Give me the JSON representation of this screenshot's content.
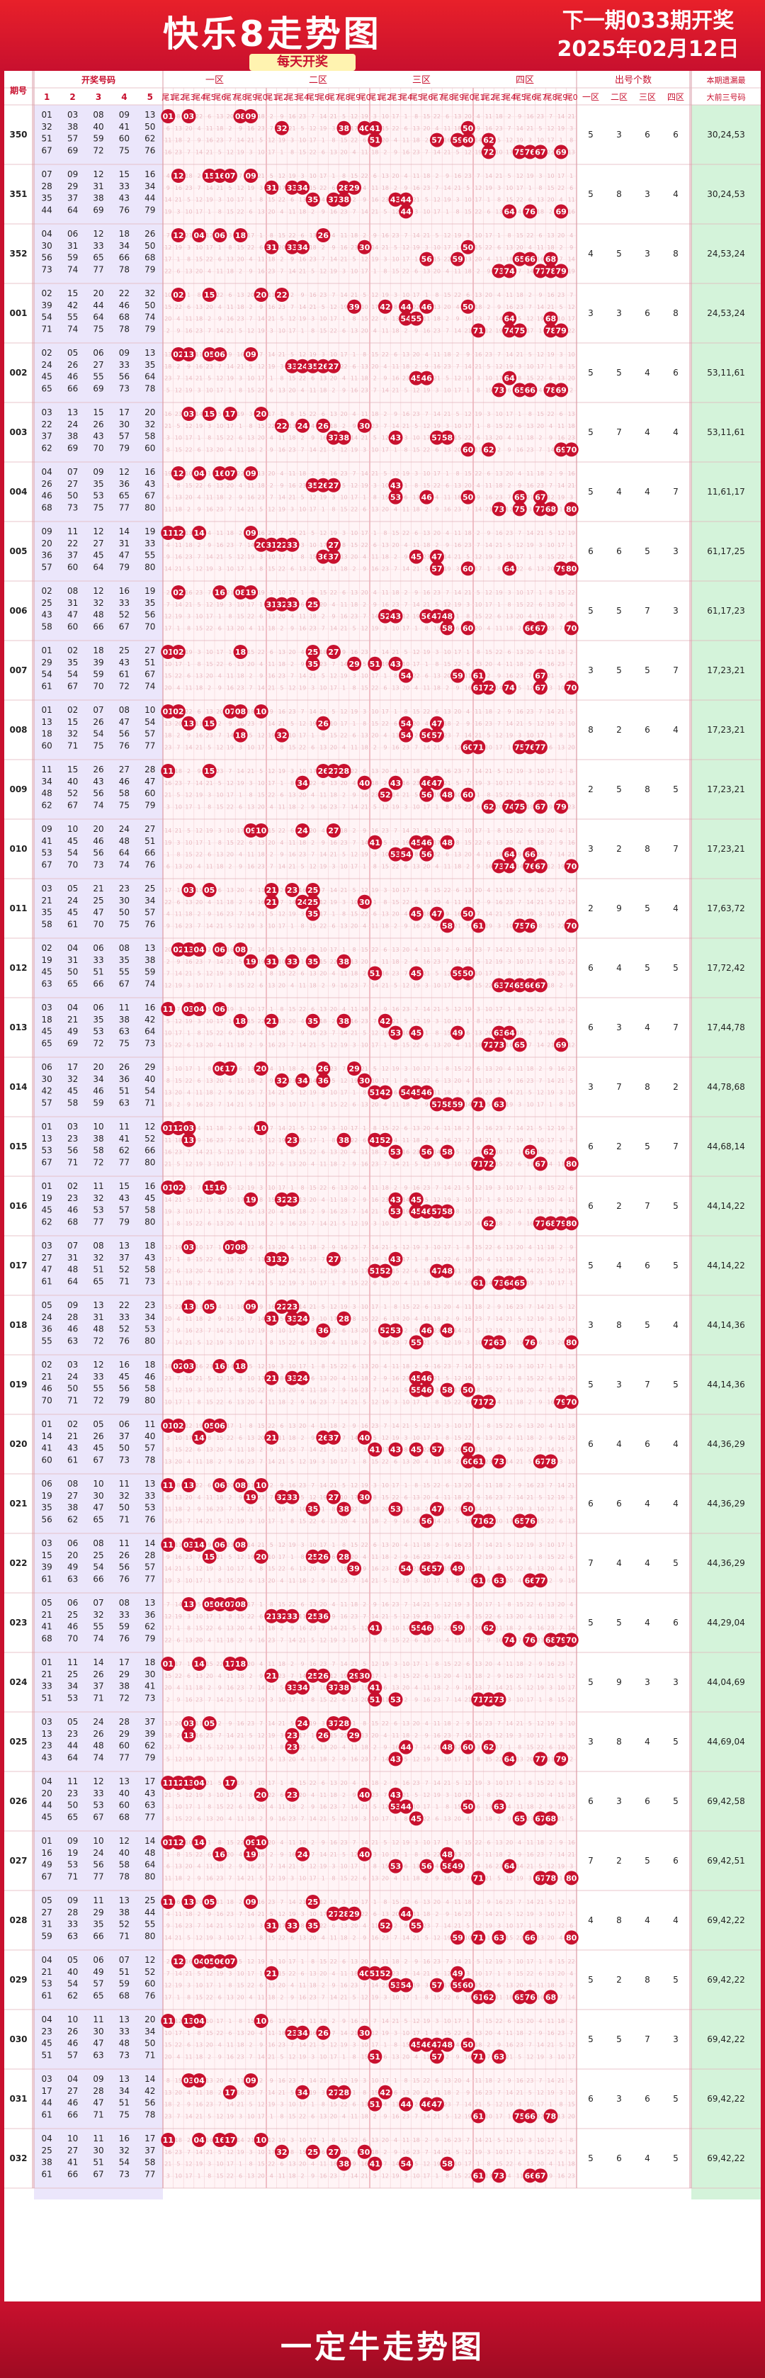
{
  "header": {
    "title": "快乐8走势图",
    "subtitle": "每天开奖",
    "next_draw": "下一期033期开奖",
    "next_date": "2025年02月12日"
  },
  "footer": {
    "text": "一定牛走势图"
  },
  "columns": {
    "period": "期号",
    "numbers": "开奖号码",
    "num_sub": [
      "1",
      "2",
      "3",
      "4",
      "5"
    ],
    "zones": [
      "一区",
      "二区",
      "三区",
      "四区"
    ],
    "tails": [
      "尾1",
      "尾2",
      "尾3",
      "尾4",
      "尾5",
      "尾6",
      "尾7",
      "尾8",
      "尾9",
      "尾0"
    ],
    "count": "出号个数",
    "count_sub": [
      "一区",
      "二区",
      "三区",
      "四区"
    ],
    "miss_top": "本期遗漏最",
    "miss_bottom": "大前三号码"
  },
  "colors": {
    "red": "#c8102e",
    "ball": "#c8102e",
    "lavender": "#ebe6fb",
    "mint": "#d4f3da",
    "pink": "#fff4f6"
  },
  "chart_data": {
    "type": "table",
    "rows": [
      {
        "period": "350",
        "nums": [
          1,
          3,
          8,
          9,
          13,
          32,
          38,
          40,
          41,
          50,
          51,
          57,
          59,
          60,
          62,
          67,
          69,
          72,
          75,
          76
        ],
        "miss": "30,24,53"
      },
      {
        "period": "351",
        "nums": [
          7,
          9,
          12,
          15,
          16,
          28,
          29,
          31,
          33,
          34,
          35,
          37,
          38,
          43,
          44,
          44,
          64,
          69,
          76,
          79
        ],
        "miss": "30,24,53"
      },
      {
        "period": "352",
        "nums": [
          4,
          6,
          12,
          18,
          26,
          30,
          31,
          33,
          34,
          50,
          56,
          59,
          65,
          66,
          68,
          73,
          74,
          77,
          78,
          79
        ],
        "miss": "24,53,24"
      },
      {
        "period": "001",
        "nums": [
          2,
          15,
          20,
          22,
          32,
          39,
          42,
          44,
          46,
          50,
          54,
          55,
          64,
          68,
          74,
          71,
          74,
          75,
          78,
          79
        ],
        "miss": "24,53,24"
      },
      {
        "period": "002",
        "nums": [
          2,
          5,
          6,
          9,
          13,
          24,
          26,
          27,
          33,
          35,
          45,
          46,
          55,
          56,
          64,
          65,
          66,
          69,
          73,
          78
        ],
        "miss": "53,11,61"
      },
      {
        "period": "003",
        "nums": [
          3,
          13,
          15,
          17,
          20,
          22,
          24,
          26,
          30,
          32,
          37,
          38,
          43,
          57,
          58,
          62,
          69,
          70,
          79,
          60
        ],
        "miss": "53,11,61"
      },
      {
        "period": "004",
        "nums": [
          4,
          7,
          9,
          12,
          16,
          26,
          27,
          35,
          36,
          43,
          46,
          50,
          53,
          65,
          67,
          68,
          73,
          75,
          77,
          80
        ],
        "miss": "11,61,17"
      },
      {
        "period": "005",
        "nums": [
          9,
          11,
          12,
          14,
          19,
          20,
          22,
          27,
          31,
          33,
          36,
          37,
          45,
          47,
          55,
          57,
          60,
          64,
          79,
          80
        ],
        "miss": "61,17,25"
      },
      {
        "period": "006",
        "nums": [
          2,
          8,
          12,
          16,
          19,
          25,
          31,
          32,
          33,
          35,
          43,
          47,
          48,
          52,
          56,
          58,
          60,
          66,
          67,
          70
        ],
        "miss": "61,17,23"
      },
      {
        "period": "007",
        "nums": [
          1,
          2,
          18,
          25,
          27,
          29,
          35,
          39,
          43,
          51,
          54,
          54,
          59,
          61,
          67,
          61,
          67,
          70,
          72,
          74
        ],
        "miss": "17,23,21"
      },
      {
        "period": "008",
        "nums": [
          1,
          2,
          7,
          8,
          10,
          13,
          15,
          26,
          47,
          54,
          18,
          32,
          54,
          56,
          57,
          60,
          71,
          75,
          76,
          77
        ],
        "miss": "17,23,21"
      },
      {
        "period": "009",
        "nums": [
          11,
          15,
          26,
          27,
          28,
          34,
          40,
          43,
          46,
          47,
          48,
          52,
          56,
          58,
          60,
          62,
          67,
          74,
          75,
          79
        ],
        "miss": "17,23,21"
      },
      {
        "period": "010",
        "nums": [
          9,
          10,
          20,
          24,
          27,
          41,
          45,
          46,
          48,
          51,
          53,
          54,
          56,
          64,
          66,
          67,
          70,
          73,
          74,
          76
        ],
        "miss": "17,23,21"
      },
      {
        "period": "011",
        "nums": [
          3,
          5,
          21,
          23,
          25,
          21,
          24,
          25,
          30,
          34,
          35,
          45,
          47,
          50,
          57,
          58,
          61,
          70,
          75,
          76
        ],
        "miss": "17,63,72"
      },
      {
        "period": "012",
        "nums": [
          2,
          4,
          6,
          8,
          13,
          19,
          31,
          33,
          35,
          38,
          45,
          50,
          51,
          55,
          59,
          63,
          65,
          66,
          67,
          74
        ],
        "miss": "17,72,42"
      },
      {
        "period": "013",
        "nums": [
          3,
          4,
          6,
          11,
          16,
          18,
          21,
          35,
          38,
          42,
          45,
          49,
          53,
          63,
          64,
          65,
          69,
          72,
          75,
          73
        ],
        "miss": "17,44,78"
      },
      {
        "period": "014",
        "nums": [
          6,
          17,
          20,
          26,
          29,
          30,
          32,
          34,
          36,
          40,
          42,
          45,
          46,
          51,
          54,
          57,
          58,
          59,
          63,
          71
        ],
        "miss": "44,78,68"
      },
      {
        "period": "015",
        "nums": [
          1,
          3,
          10,
          11,
          12,
          13,
          23,
          38,
          41,
          52,
          53,
          56,
          58,
          62,
          66,
          67,
          71,
          72,
          77,
          80
        ],
        "miss": "44,68,14"
      },
      {
        "period": "016",
        "nums": [
          1,
          2,
          11,
          15,
          16,
          19,
          23,
          32,
          43,
          45,
          45,
          46,
          53,
          57,
          58,
          62,
          68,
          77,
          79,
          80
        ],
        "miss": "44,14,22"
      },
      {
        "period": "017",
        "nums": [
          3,
          7,
          8,
          13,
          18,
          27,
          31,
          32,
          37,
          43,
          47,
          48,
          51,
          52,
          58,
          61,
          64,
          65,
          71,
          73
        ],
        "miss": "44,14,22"
      },
      {
        "period": "018",
        "nums": [
          5,
          9,
          13,
          22,
          23,
          24,
          28,
          31,
          33,
          34,
          36,
          46,
          48,
          52,
          53,
          55,
          63,
          72,
          76,
          80
        ],
        "miss": "44,14,36"
      },
      {
        "period": "019",
        "nums": [
          2,
          3,
          12,
          16,
          18,
          21,
          24,
          33,
          45,
          46,
          46,
          50,
          55,
          56,
          58,
          70,
          71,
          72,
          79,
          80
        ],
        "miss": "44,14,36"
      },
      {
        "period": "020",
        "nums": [
          1,
          2,
          5,
          6,
          11,
          14,
          21,
          26,
          37,
          40,
          41,
          43,
          45,
          50,
          57,
          60,
          61,
          67,
          73,
          78
        ],
        "miss": "44,36,29"
      },
      {
        "period": "021",
        "nums": [
          6,
          8,
          10,
          11,
          13,
          19,
          27,
          30,
          32,
          33,
          35,
          38,
          47,
          50,
          53,
          56,
          62,
          65,
          71,
          76
        ],
        "miss": "44,36,29"
      },
      {
        "period": "022",
        "nums": [
          3,
          6,
          8,
          11,
          14,
          15,
          20,
          25,
          26,
          28,
          39,
          49,
          54,
          56,
          57,
          61,
          63,
          66,
          76,
          77
        ],
        "miss": "44,36,29"
      },
      {
        "period": "023",
        "nums": [
          5,
          6,
          7,
          8,
          13,
          21,
          25,
          32,
          33,
          36,
          41,
          46,
          55,
          59,
          62,
          68,
          70,
          74,
          76,
          79
        ],
        "miss": "44,29,04"
      },
      {
        "period": "024",
        "nums": [
          1,
          11,
          14,
          17,
          18,
          21,
          25,
          26,
          29,
          30,
          33,
          34,
          37,
          38,
          41,
          51,
          53,
          71,
          72,
          73
        ],
        "miss": "44,04,69"
      },
      {
        "period": "025",
        "nums": [
          3,
          5,
          24,
          28,
          37,
          13,
          23,
          26,
          29,
          39,
          23,
          44,
          48,
          60,
          62,
          43,
          64,
          74,
          77,
          79
        ],
        "miss": "44,69,04"
      },
      {
        "period": "026",
        "nums": [
          4,
          11,
          12,
          13,
          17,
          20,
          23,
          33,
          40,
          43,
          44,
          50,
          53,
          60,
          63,
          45,
          65,
          67,
          68,
          77
        ],
        "miss": "69,42,58"
      },
      {
        "period": "027",
        "nums": [
          1,
          9,
          10,
          12,
          14,
          16,
          19,
          24,
          40,
          48,
          49,
          53,
          56,
          58,
          64,
          67,
          71,
          77,
          78,
          80
        ],
        "miss": "69,42,51"
      },
      {
        "period": "028",
        "nums": [
          5,
          9,
          11,
          13,
          25,
          27,
          28,
          29,
          38,
          44,
          31,
          33,
          35,
          52,
          55,
          59,
          63,
          66,
          71,
          80
        ],
        "miss": "69,42,22"
      },
      {
        "period": "029",
        "nums": [
          4,
          5,
          6,
          7,
          12,
          21,
          40,
          49,
          51,
          52,
          53,
          54,
          57,
          59,
          60,
          61,
          62,
          65,
          68,
          76
        ],
        "miss": "69,42,22"
      },
      {
        "period": "030",
        "nums": [
          4,
          10,
          11,
          13,
          20,
          23,
          26,
          30,
          33,
          34,
          45,
          46,
          47,
          48,
          50,
          51,
          57,
          63,
          73,
          71
        ],
        "miss": "69,42,22"
      },
      {
        "period": "031",
        "nums": [
          3,
          4,
          9,
          13,
          14,
          17,
          27,
          28,
          34,
          42,
          44,
          46,
          47,
          51,
          56,
          61,
          66,
          71,
          75,
          78
        ],
        "miss": "69,42,22"
      },
      {
        "period": "032",
        "nums": [
          4,
          10,
          11,
          16,
          17,
          25,
          27,
          30,
          32,
          37,
          38,
          41,
          51,
          54,
          58,
          61,
          66,
          67,
          73,
          77
        ],
        "miss": "69,42,22"
      }
    ]
  }
}
